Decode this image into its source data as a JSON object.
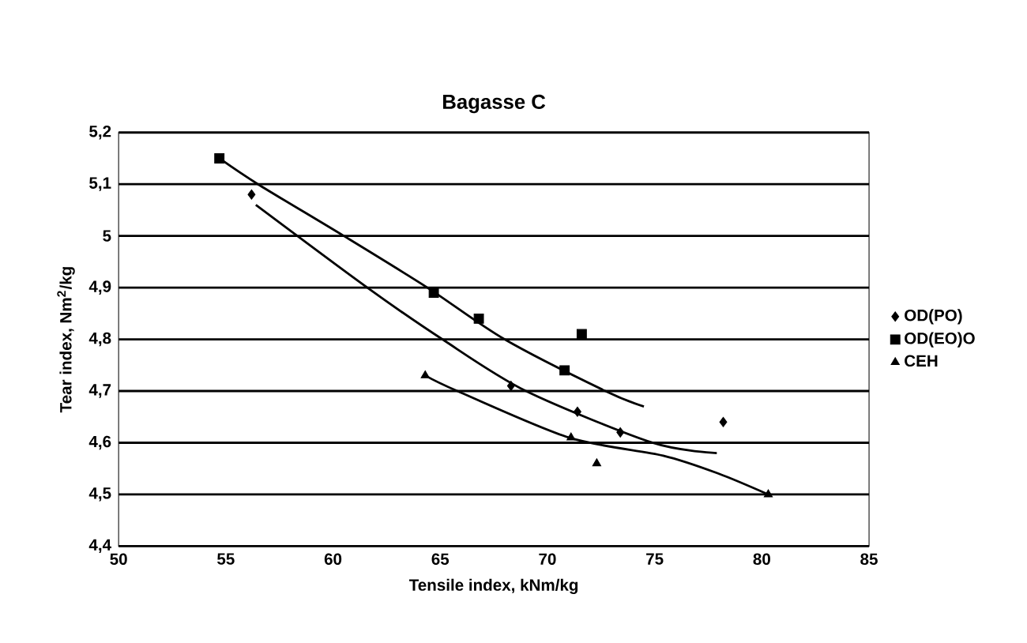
{
  "chart_data": {
    "type": "scatter",
    "title": "Bagasse C",
    "xlabel": "Tensile index, kNm/kg",
    "ylabel": "Tear index, Nm$^{2}$/kg",
    "xlim": [
      50,
      85
    ],
    "xticks": [
      50,
      55,
      60,
      65,
      70,
      75,
      80,
      85
    ],
    "ylim": [
      4.4,
      5.2
    ],
    "yticks": [
      {
        "value": 4.4,
        "label": "4,4"
      },
      {
        "value": 4.5,
        "label": "4,5"
      },
      {
        "value": 4.6,
        "label": "4,6"
      },
      {
        "value": 4.7,
        "label": "4,7"
      },
      {
        "value": 4.8,
        "label": "4,8"
      },
      {
        "value": 4.9,
        "label": "4,9"
      },
      {
        "value": 5,
        "label": "5"
      },
      {
        "value": 5.1,
        "label": "5,1"
      },
      {
        "value": 5.2,
        "label": "5,2"
      }
    ],
    "grid": "y",
    "legend": "right",
    "series": [
      {
        "name": "OD(PO)",
        "color": "#000000",
        "marker": "diamond",
        "x": [
          56.2,
          68.3,
          71.4,
          73.4,
          78.2
        ],
        "values": [
          5.08,
          4.71,
          4.66,
          4.62,
          4.64
        ]
      },
      {
        "name": "OD(EO)O",
        "color": "#000000",
        "marker": "square",
        "x": [
          54.7,
          64.7,
          66.8,
          70.8,
          71.6
        ],
        "values": [
          5.15,
          4.89,
          4.84,
          4.74,
          4.81
        ]
      },
      {
        "name": "CEH",
        "color": "#000000",
        "marker": "triangle",
        "x": [
          64.3,
          71.1,
          72.3,
          80.3
        ],
        "values": [
          4.73,
          4.61,
          4.56,
          4.5
        ]
      },
      {
        "type": "line",
        "color": "#000000",
        "marker": "none",
        "x": [
          56.4,
          61.6,
          65.1,
          69.0,
          74.9,
          77.9
        ],
        "values": [
          5.06,
          4.9,
          4.8,
          4.7,
          4.6,
          4.58
        ]
      },
      {
        "type": "line",
        "color": "#000000",
        "marker": "none",
        "x": [
          54.7,
          56.5,
          60.5,
          64.4,
          68.0,
          72.7,
          74.5
        ],
        "values": [
          5.15,
          5.1,
          5.0,
          4.9,
          4.8,
          4.7,
          4.67
        ]
      },
      {
        "type": "line",
        "color": "#000000",
        "marker": "none",
        "x": [
          64.3,
          65.8,
          71.0,
          75.4,
          78.0,
          80.3
        ],
        "values": [
          4.73,
          4.7,
          4.61,
          4.575,
          4.54,
          4.5
        ]
      }
    ]
  }
}
